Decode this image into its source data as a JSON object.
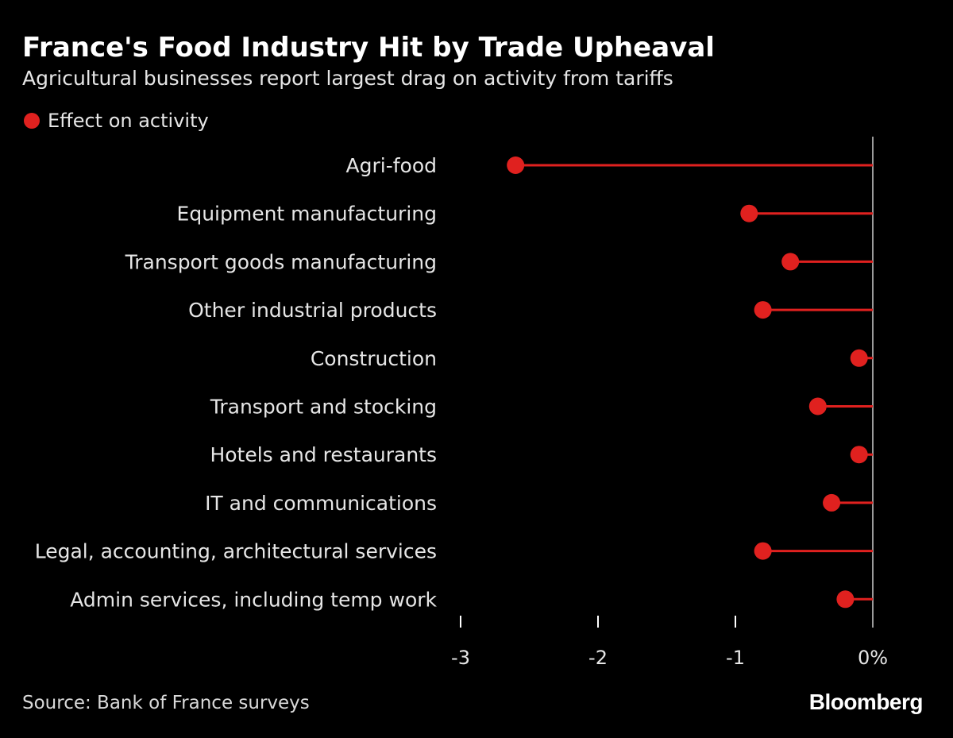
{
  "colors": {
    "background": "#000000",
    "marker": "#e0211f",
    "text": "#ffffff",
    "label": "#e6e6e6",
    "axis": "#9a9a9a"
  },
  "brand": "Bloomberg",
  "source": "Source: Bank of France surveys",
  "chart_data": {
    "type": "lollipop",
    "orientation": "horizontal",
    "title": "France's Food Industry Hit by Trade Upheaval",
    "subtitle": "Agricultural businesses report largest drag on activity from tariffs",
    "legend": [
      {
        "name": "Effect on activity",
        "color": "#e0211f"
      }
    ],
    "legend_position": "top-left",
    "categories": [
      "Agri-food",
      "Equipment manufacturing",
      "Transport goods manufacturing",
      "Other industrial products",
      "Construction",
      "Transport and stocking",
      "Hotels and restaurants",
      "IT and communications",
      "Legal, accounting, architectural services",
      "Admin services, including temp work"
    ],
    "series": [
      {
        "name": "Effect on activity",
        "values": [
          -2.6,
          -0.9,
          -0.6,
          -0.8,
          -0.1,
          -0.4,
          -0.1,
          -0.3,
          -0.8,
          -0.2
        ]
      }
    ],
    "xlim": [
      -3,
      0
    ],
    "xticks": [
      {
        "value": -3,
        "label": "-3"
      },
      {
        "value": -2,
        "label": "-2"
      },
      {
        "value": -1,
        "label": "-1"
      },
      {
        "value": 0,
        "label": "0%"
      }
    ],
    "xlabel": "",
    "ylabel": "",
    "grid": false
  }
}
